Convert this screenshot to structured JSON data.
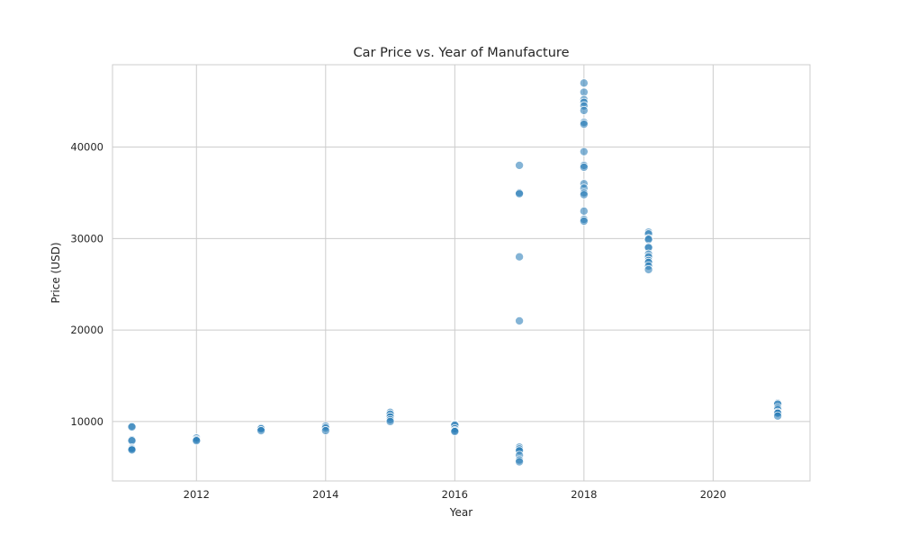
{
  "chart_data": {
    "type": "scatter",
    "title": "Car Price vs. Year of Manufacture",
    "xlabel": "Year",
    "ylabel": "Price (USD)",
    "xlim": [
      2010.7,
      2021.5
    ],
    "ylim": [
      3500,
      49000
    ],
    "xticks": [
      2012,
      2014,
      2016,
      2018,
      2020
    ],
    "yticks": [
      10000,
      20000,
      30000,
      40000
    ],
    "grid": true,
    "point_color": "#1f77b4",
    "point_opacity": 0.55,
    "points": [
      {
        "x": 2011,
        "y": 9500
      },
      {
        "x": 2011,
        "y": 9400
      },
      {
        "x": 2011,
        "y": 8000
      },
      {
        "x": 2011,
        "y": 7900
      },
      {
        "x": 2011,
        "y": 7100
      },
      {
        "x": 2011,
        "y": 7000
      },
      {
        "x": 2011,
        "y": 6900
      },
      {
        "x": 2012,
        "y": 8200
      },
      {
        "x": 2012,
        "y": 8000
      },
      {
        "x": 2012,
        "y": 7900
      },
      {
        "x": 2013,
        "y": 9300
      },
      {
        "x": 2013,
        "y": 9200
      },
      {
        "x": 2013,
        "y": 9000
      },
      {
        "x": 2014,
        "y": 9500
      },
      {
        "x": 2014,
        "y": 9300
      },
      {
        "x": 2014,
        "y": 9000
      },
      {
        "x": 2015,
        "y": 11000
      },
      {
        "x": 2015,
        "y": 10800
      },
      {
        "x": 2015,
        "y": 10500
      },
      {
        "x": 2015,
        "y": 10200
      },
      {
        "x": 2015,
        "y": 10000
      },
      {
        "x": 2016,
        "y": 9700
      },
      {
        "x": 2016,
        "y": 9600
      },
      {
        "x": 2016,
        "y": 9200
      },
      {
        "x": 2016,
        "y": 9000
      },
      {
        "x": 2016,
        "y": 8900
      },
      {
        "x": 2017,
        "y": 38000
      },
      {
        "x": 2017,
        "y": 35000
      },
      {
        "x": 2017,
        "y": 34900
      },
      {
        "x": 2017,
        "y": 28000
      },
      {
        "x": 2017,
        "y": 21000
      },
      {
        "x": 2017,
        "y": 7200
      },
      {
        "x": 2017,
        "y": 7000
      },
      {
        "x": 2017,
        "y": 6800
      },
      {
        "x": 2017,
        "y": 6300
      },
      {
        "x": 2017,
        "y": 5800
      },
      {
        "x": 2017,
        "y": 5600
      },
      {
        "x": 2018,
        "y": 47000
      },
      {
        "x": 2018,
        "y": 46000
      },
      {
        "x": 2018,
        "y": 45200
      },
      {
        "x": 2018,
        "y": 44900
      },
      {
        "x": 2018,
        "y": 44500
      },
      {
        "x": 2018,
        "y": 44000
      },
      {
        "x": 2018,
        "y": 42700
      },
      {
        "x": 2018,
        "y": 42500
      },
      {
        "x": 2018,
        "y": 39500
      },
      {
        "x": 2018,
        "y": 38000
      },
      {
        "x": 2018,
        "y": 37800
      },
      {
        "x": 2018,
        "y": 36000
      },
      {
        "x": 2018,
        "y": 35500
      },
      {
        "x": 2018,
        "y": 35000
      },
      {
        "x": 2018,
        "y": 34800
      },
      {
        "x": 2018,
        "y": 33000
      },
      {
        "x": 2018,
        "y": 32100
      },
      {
        "x": 2018,
        "y": 31900
      },
      {
        "x": 2019,
        "y": 30700
      },
      {
        "x": 2019,
        "y": 30500
      },
      {
        "x": 2019,
        "y": 30000
      },
      {
        "x": 2019,
        "y": 29900
      },
      {
        "x": 2019,
        "y": 29100
      },
      {
        "x": 2019,
        "y": 29000
      },
      {
        "x": 2019,
        "y": 28300
      },
      {
        "x": 2019,
        "y": 28000
      },
      {
        "x": 2019,
        "y": 27600
      },
      {
        "x": 2019,
        "y": 27400
      },
      {
        "x": 2019,
        "y": 27000
      },
      {
        "x": 2019,
        "y": 26600
      },
      {
        "x": 2021,
        "y": 12000
      },
      {
        "x": 2021,
        "y": 11900
      },
      {
        "x": 2021,
        "y": 11500
      },
      {
        "x": 2021,
        "y": 11300
      },
      {
        "x": 2021,
        "y": 11000
      },
      {
        "x": 2021,
        "y": 10900
      },
      {
        "x": 2021,
        "y": 10600
      }
    ]
  }
}
